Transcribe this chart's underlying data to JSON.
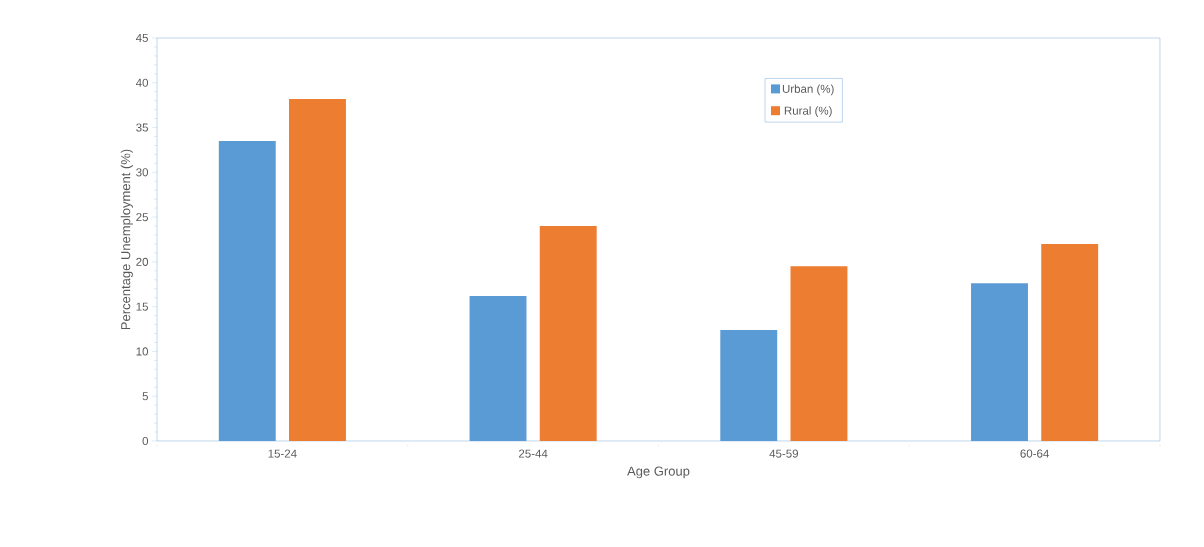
{
  "chart_data": {
    "type": "bar",
    "xlabel": "Age Group",
    "ylabel": "Percentage Unemployment  (%)",
    "categories": [
      "15-24",
      "25-44",
      "45-59",
      "60-64"
    ],
    "series": [
      {
        "name": "Urban (%)",
        "color": "#5b9bd5",
        "values": [
          33.5,
          16.2,
          12.4,
          17.6
        ]
      },
      {
        "name": "Rural (%)",
        "color": "#ed7d31",
        "values": [
          38.2,
          24.0,
          19.5,
          22.0
        ]
      }
    ],
    "ylim": [
      0,
      45
    ],
    "yticks": [
      0,
      5,
      10,
      15,
      20,
      25,
      30,
      35,
      40,
      45
    ],
    "legend": "top",
    "grid": false
  }
}
